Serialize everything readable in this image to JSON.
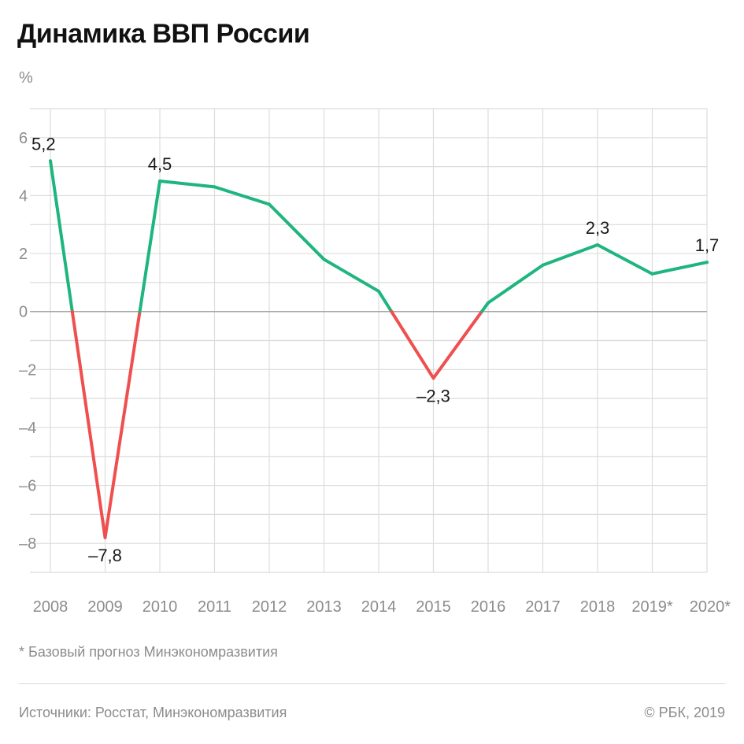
{
  "header": {
    "title": "Динамика ВВП России",
    "unit": "%"
  },
  "footer": {
    "note": "* Базовый прогноз Минэкономразвития",
    "sources": "Источники: Росстат, Минэкономразвития",
    "copyright": "© РБК, 2019"
  },
  "colors": {
    "positive": "#1fb57f",
    "negative": "#ef4f4f",
    "grid": "#dcdcdc",
    "zero": "#a8a8a8",
    "tick": "#8c8c8c",
    "label": "#1a1a1a"
  },
  "chart_data": {
    "type": "line",
    "title": "Динамика ВВП России",
    "ylabel": "%",
    "xlabel": "",
    "categories": [
      "2008",
      "2009",
      "2010",
      "2011",
      "2012",
      "2013",
      "2014",
      "2015",
      "2016",
      "2017",
      "2018",
      "2019*",
      "2020*"
    ],
    "values": [
      5.2,
      -7.8,
      4.5,
      4.3,
      3.7,
      1.8,
      0.7,
      -2.3,
      0.3,
      1.6,
      2.3,
      1.3,
      1.7
    ],
    "ylim": [
      -9,
      7
    ],
    "yticks": [
      6,
      4,
      2,
      0,
      -2,
      -4,
      -6,
      -8
    ],
    "ytick_labels": [
      "6",
      "4",
      "2",
      "0",
      "–2",
      "–4",
      "–6",
      "–8"
    ],
    "grid": true,
    "annotations": [
      {
        "index": 0,
        "text": "5,2",
        "position": "above"
      },
      {
        "index": 1,
        "text": "–7,8",
        "position": "below"
      },
      {
        "index": 2,
        "text": "4,5",
        "position": "above"
      },
      {
        "index": 7,
        "text": "–2,3",
        "position": "below"
      },
      {
        "index": 10,
        "text": "2,3",
        "position": "above"
      },
      {
        "index": 12,
        "text": "1,7",
        "position": "above"
      }
    ]
  }
}
